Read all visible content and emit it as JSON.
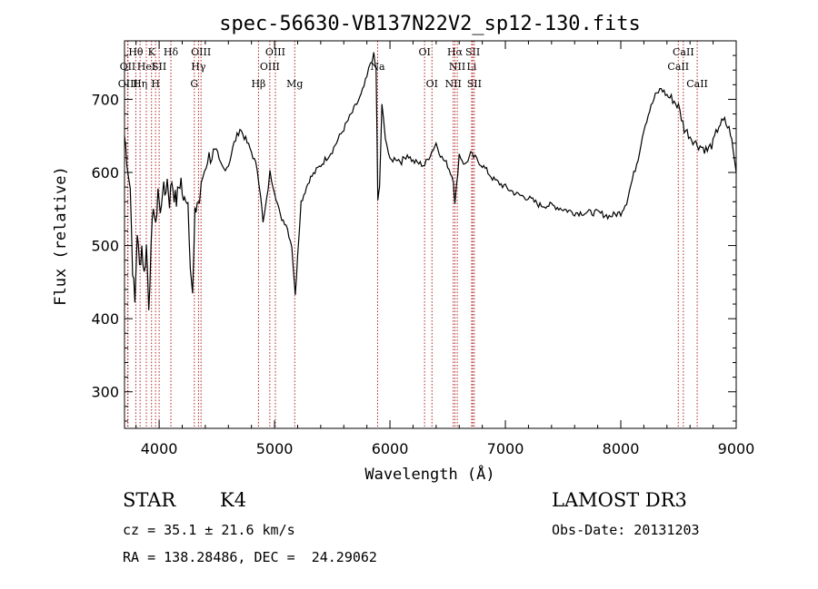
{
  "chart_data": {
    "type": "line",
    "title": "spec-56630-VB137N22V2_sp12-130.fits",
    "xlabel": "Wavelength (Å)",
    "ylabel": "Flux (relative)",
    "xlim": [
      3700,
      9000
    ],
    "ylim": [
      250,
      780
    ],
    "xticks": [
      4000,
      5000,
      6000,
      7000,
      8000,
      9000
    ],
    "yticks": [
      300,
      400,
      500,
      600,
      700
    ],
    "grid": false,
    "series": [
      {
        "name": "flux",
        "color": "#000000",
        "x": [
          3700,
          3720,
          3750,
          3770,
          3790,
          3810,
          3830,
          3850,
          3870,
          3890,
          3910,
          3930,
          3950,
          3970,
          3990,
          4010,
          4030,
          4050,
          4070,
          4090,
          4110,
          4130,
          4150,
          4170,
          4190,
          4210,
          4230,
          4250,
          4270,
          4290,
          4310,
          4330,
          4350,
          4380,
          4420,
          4470,
          4520,
          4560,
          4600,
          4650,
          4700,
          4750,
          4800,
          4850,
          4880,
          4900,
          4930,
          4960,
          5000,
          5050,
          5100,
          5150,
          5180,
          5200,
          5230,
          5300,
          5400,
          5500,
          5600,
          5700,
          5750,
          5800,
          5830,
          5860,
          5880,
          5895,
          5910,
          5930,
          5960,
          6000,
          6050,
          6100,
          6150,
          6200,
          6300,
          6400,
          6450,
          6500,
          6550,
          6563,
          6600,
          6650,
          6700,
          6750,
          6800,
          6900,
          7000,
          7100,
          7200,
          7300,
          7400,
          7500,
          7600,
          7700,
          7800,
          7900,
          8000,
          8050,
          8100,
          8150,
          8200,
          8250,
          8300,
          8350,
          8400,
          8450,
          8500,
          8550,
          8600,
          8650,
          8700,
          8750,
          8800,
          8850,
          8900,
          8950,
          9000
        ],
        "y": [
          650,
          620,
          580,
          470,
          420,
          520,
          470,
          500,
          460,
          500,
          420,
          490,
          560,
          520,
          580,
          540,
          580,
          570,
          590,
          560,
          590,
          570,
          560,
          580,
          590,
          555,
          570,
          560,
          480,
          430,
          540,
          560,
          560,
          595,
          620,
          625,
          615,
          605,
          610,
          640,
          660,
          645,
          628,
          605,
          570,
          530,
          560,
          600,
          575,
          540,
          530,
          500,
          430,
          490,
          560,
          590,
          610,
          630,
          660,
          690,
          705,
          730,
          750,
          760,
          740,
          560,
          580,
          690,
          650,
          615,
          620,
          615,
          625,
          615,
          610,
          640,
          620,
          610,
          590,
          555,
          625,
          610,
          625,
          618,
          610,
          590,
          580,
          570,
          565,
          555,
          555,
          550,
          545,
          545,
          545,
          540,
          545,
          560,
          590,
          620,
          660,
          685,
          705,
          715,
          705,
          700,
          690,
          660,
          650,
          640,
          635,
          630,
          640,
          665,
          670,
          655,
          600
        ]
      }
    ],
    "annotations": [
      {
        "label": "Hθ",
        "wavelength": 3798,
        "row": 1
      },
      {
        "label": "OII",
        "wavelength": 3727,
        "row": 2
      },
      {
        "label": "HeI",
        "wavelength": 3889,
        "row": 2
      },
      {
        "label": "OIII",
        "wavelength": 3730,
        "row": 3
      },
      {
        "label": "Hη",
        "wavelength": 3835,
        "row": 3
      },
      {
        "label": "K",
        "wavelength": 3934,
        "row": 1
      },
      {
        "label": "H",
        "wavelength": 3969,
        "row": 3
      },
      {
        "label": "SII",
        "wavelength": 4000,
        "row": 2
      },
      {
        "label": "Hδ",
        "wavelength": 4102,
        "row": 1
      },
      {
        "label": "OIII",
        "wavelength": 4363,
        "row": 1
      },
      {
        "label": "Hγ",
        "wavelength": 4341,
        "row": 2
      },
      {
        "label": "G",
        "wavelength": 4305,
        "row": 3
      },
      {
        "label": "Hβ",
        "wavelength": 4861,
        "row": 3
      },
      {
        "label": "OIII",
        "wavelength": 5007,
        "row": 1
      },
      {
        "label": "OIII",
        "wavelength": 4959,
        "row": 2
      },
      {
        "label": "Mg",
        "wavelength": 5175,
        "row": 3
      },
      {
        "label": "Na",
        "wavelength": 5893,
        "row": 2
      },
      {
        "label": "OI",
        "wavelength": 6300,
        "row": 1
      },
      {
        "label": "OI",
        "wavelength": 6364,
        "row": 3
      },
      {
        "label": "Hα",
        "wavelength": 6563,
        "row": 1
      },
      {
        "label": "NII",
        "wavelength": 6583,
        "row": 2
      },
      {
        "label": "NII",
        "wavelength": 6548,
        "row": 3
      },
      {
        "label": "SII",
        "wavelength": 6717,
        "row": 1
      },
      {
        "label": "Li",
        "wavelength": 6708,
        "row": 2
      },
      {
        "label": "SII",
        "wavelength": 6731,
        "row": 3
      },
      {
        "label": "CaII",
        "wavelength": 8542,
        "row": 1
      },
      {
        "label": "CaII",
        "wavelength": 8498,
        "row": 2
      },
      {
        "label": "CaII",
        "wavelength": 8662,
        "row": 3
      }
    ]
  },
  "info": {
    "class": "STAR",
    "subclass": "K4",
    "survey": "LAMOST DR3",
    "velocity": "cz = 35.1 ± 21.6 km/s",
    "obs_date": "Obs-Date: 20131203",
    "coords": "RA = 138.28486, DEC =  24.29062"
  }
}
